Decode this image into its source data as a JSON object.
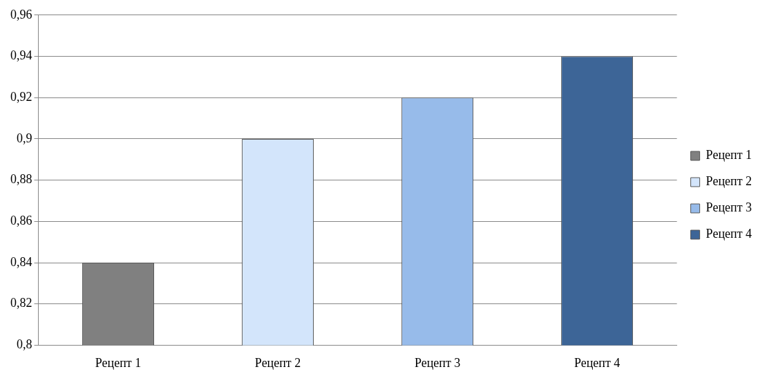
{
  "chart_data": {
    "type": "bar",
    "categories": [
      "Рецепт 1",
      "Рецепт 2",
      "Рецепт 3",
      "Рецепт 4"
    ],
    "series": [
      {
        "name": "Рецепт 1",
        "color": "#808080",
        "values": [
          0.84,
          null,
          null,
          null
        ]
      },
      {
        "name": "Рецепт 2",
        "color": "#d3e5fb",
        "values": [
          null,
          0.9,
          null,
          null
        ]
      },
      {
        "name": "Рецепт 3",
        "color": "#97bbea",
        "values": [
          null,
          null,
          0.92,
          null
        ]
      },
      {
        "name": "Рецепт 4",
        "color": "#3d6597",
        "values": [
          null,
          null,
          null,
          0.94
        ]
      }
    ],
    "ylim": [
      0.8,
      0.96
    ],
    "yticks": [
      {
        "value": 0.8,
        "label": "0,8"
      },
      {
        "value": 0.82,
        "label": "0,82"
      },
      {
        "value": 0.84,
        "label": "0,84"
      },
      {
        "value": 0.86,
        "label": "0,86"
      },
      {
        "value": 0.88,
        "label": "0,88"
      },
      {
        "value": 0.9,
        "label": "0,9"
      },
      {
        "value": 0.92,
        "label": "0,92"
      },
      {
        "value": 0.94,
        "label": "0,94"
      },
      {
        "value": 0.96,
        "label": "0,96"
      }
    ],
    "grid": "y",
    "legend": "right"
  }
}
